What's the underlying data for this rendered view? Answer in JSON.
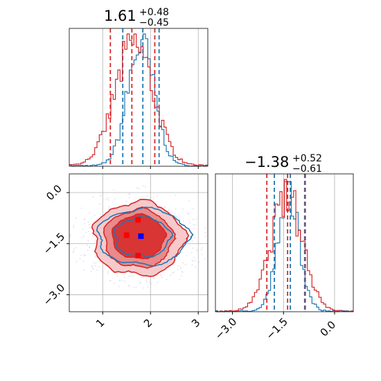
{
  "chart_data": {
    "type": "corner",
    "colors": {
      "series_a": "#1f77b4",
      "series_b": "#d62728",
      "marker_blue": "#0000ff",
      "marker_red": "#ff0000"
    },
    "grid": true,
    "panels": [
      {
        "id": "hist_x",
        "type": "histogram",
        "title_value": "1.61",
        "title_plus": "+0.48",
        "title_minus": "−0.45",
        "xlim": [
          0.3,
          3.2
        ],
        "series": [
          {
            "color_key": "series_a",
            "quantiles": [
              1.42,
              1.84,
              2.18
            ],
            "mean": 1.8,
            "sd": 0.28
          },
          {
            "color_key": "series_b",
            "quantiles": [
              1.16,
              1.61,
              2.09
            ],
            "mean": 1.66,
            "sd": 0.4
          }
        ]
      },
      {
        "id": "scatter_xy",
        "type": "2d-density",
        "xlim": [
          0.3,
          3.2
        ],
        "ylim": [
          -3.5,
          0.55
        ],
        "xticks": [
          1,
          2,
          3
        ],
        "yticks": [
          0.0,
          -1.5,
          -3.0
        ],
        "xtick_labels": [
          "1",
          "2",
          "3"
        ],
        "ytick_labels": [
          "0.0",
          "−1.5",
          "−3.0"
        ],
        "center": {
          "x": 1.75,
          "y": -1.3
        },
        "markers_red": [
          {
            "x": 1.5,
            "y": -1.25
          },
          {
            "x": 1.74,
            "y": -0.8
          },
          {
            "x": 1.74,
            "y": -1.85
          }
        ],
        "marker_blue": {
          "x": 1.8,
          "y": -1.28
        }
      },
      {
        "id": "hist_y",
        "type": "histogram",
        "title_value": "−1.38",
        "title_plus": "+0.52",
        "title_minus": "−0.61",
        "xlim": [
          -3.5,
          0.55
        ],
        "xticks": [
          -3.0,
          -1.5,
          0.0
        ],
        "xtick_labels": [
          "−3.0",
          "−1.5",
          "0.0"
        ],
        "series": [
          {
            "color_key": "series_a",
            "quantiles": [
              -1.77,
              -1.3,
              -0.88
            ],
            "mean": -1.35,
            "sd": 0.32
          },
          {
            "color_key": "series_b",
            "quantiles": [
              -1.99,
              -1.38,
              -0.86
            ],
            "mean": -1.4,
            "sd": 0.47
          }
        ]
      }
    ]
  }
}
